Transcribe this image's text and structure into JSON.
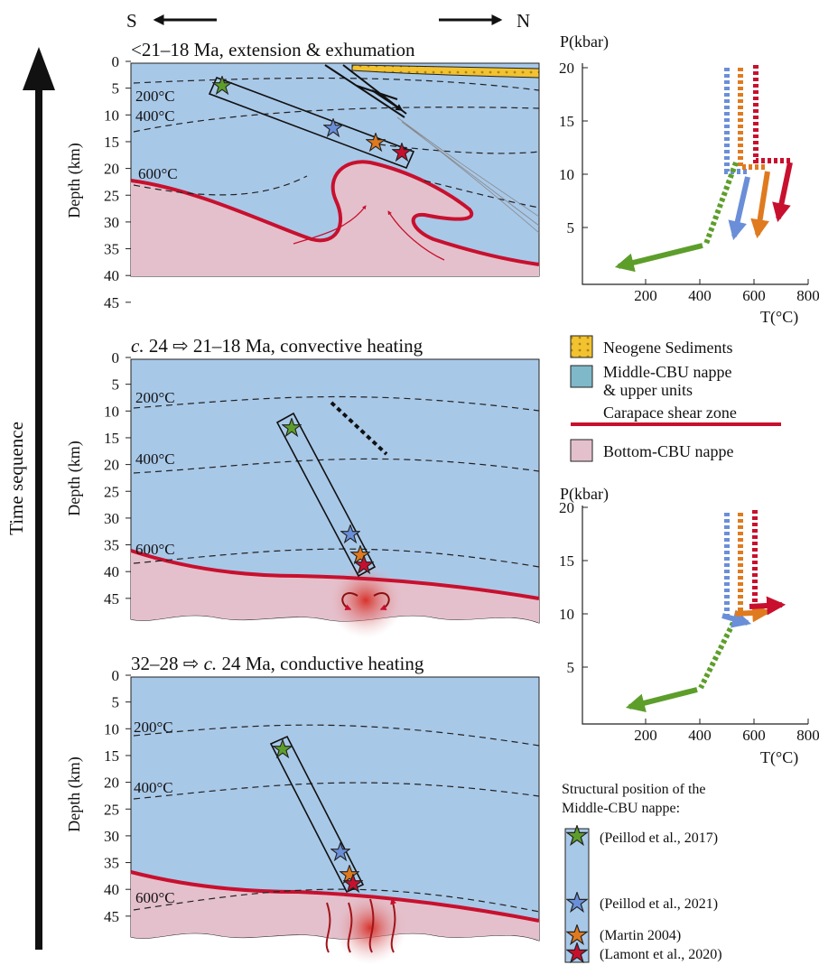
{
  "directions": {
    "south": "S",
    "north": "N"
  },
  "time_axis": "Time sequence",
  "sections": [
    {
      "title_parts": [
        "<21–18 Ma, extension & exhumation"
      ],
      "axis_label": "Depth (km)",
      "depth_ticks": [
        0,
        5,
        10,
        15,
        20,
        25,
        30,
        35,
        40,
        45
      ],
      "isotherms": [
        "200°C",
        "400°C",
        "600°C"
      ]
    },
    {
      "title_parts": [
        "c.",
        "24 ⇨ 21–18 Ma, convective heating"
      ],
      "axis_label": "Depth (km)",
      "depth_ticks": [
        0,
        5,
        10,
        15,
        20,
        25,
        30,
        35,
        40,
        45
      ],
      "isotherms": [
        "200°C",
        "400°C",
        "600°C"
      ]
    },
    {
      "title_parts": [
        "32–28 ⇨",
        "c.",
        "24 Ma, conductive heating"
      ],
      "axis_label": "Depth (km)",
      "depth_ticks": [
        0,
        5,
        10,
        15,
        20,
        25,
        30,
        35,
        40,
        45
      ],
      "isotherms": [
        "200°C",
        "400°C",
        "600°C"
      ]
    }
  ],
  "pt_plots": [
    {
      "y_label": "P(kbar)",
      "x_label": "T(°C)",
      "yticks": [
        5,
        10,
        15,
        20
      ],
      "xticks": [
        200,
        400,
        600,
        800
      ]
    },
    {
      "y_label": "P(kbar)",
      "x_label": "T(°C)",
      "yticks": [
        5,
        10,
        15,
        20
      ],
      "xticks": [
        200,
        400,
        600,
        800
      ]
    }
  ],
  "legend": {
    "sediments": "Neogene Sediments",
    "middle_nappe": [
      "Middle-CBU nappe",
      "& upper units"
    ],
    "shear_zone": "Carapace shear zone",
    "bottom_nappe": "Bottom-CBU nappe"
  },
  "structural_legend": {
    "title": [
      "Structural position of the",
      "Middle-CBU nappe:"
    ],
    "items": [
      "(Peillod et al., 2017)",
      "(Peillod et al., 2021)",
      "(Martin 2004)",
      "(Lamont et al., 2020)"
    ]
  }
}
